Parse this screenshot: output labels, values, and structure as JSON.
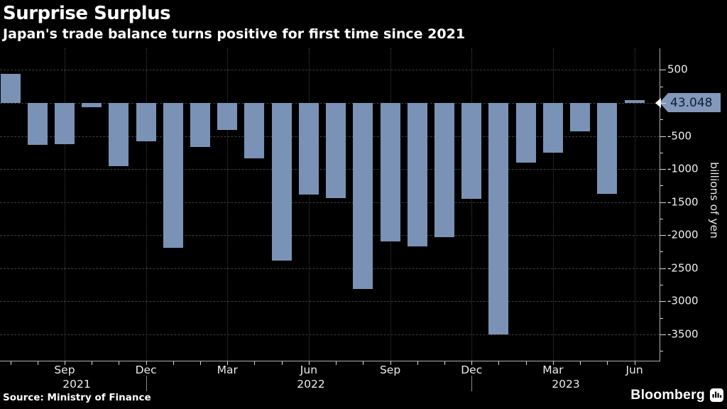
{
  "header": {
    "title": "Surprise Surplus",
    "subtitle": "Japan's trade balance turns positive for first time since 2021"
  },
  "chart_data": {
    "type": "bar",
    "title": "Surprise Surplus",
    "subtitle": "Japan's trade balance turns positive for first time since 2021",
    "ylabel": "billions of yen",
    "grid": true,
    "legend_position": "none",
    "ylim": [
      -3900,
      830
    ],
    "x": [
      "Jul 2021",
      "Aug 2021",
      "Sep 2021",
      "Oct 2021",
      "Nov 2021",
      "Dec 2021",
      "Jan 2022",
      "Feb 2022",
      "Mar 2022",
      "Apr 2022",
      "May 2022",
      "Jun 2022",
      "Jul 2022",
      "Aug 2022",
      "Sep 2022",
      "Oct 2022",
      "Nov 2022",
      "Dec 2022",
      "Jan 2023",
      "Feb 2023",
      "Mar 2023",
      "Apr 2023",
      "May 2023",
      "Jun 2023"
    ],
    "values": [
      441.9,
      -635.4,
      -622.8,
      -67.4,
      -954.8,
      -582.4,
      -2191.1,
      -668.3,
      -412.4,
      -839.2,
      -2384.7,
      -1383.8,
      -1436.8,
      -2817.3,
      -2094.0,
      -2166.2,
      -2027.4,
      -1448.5,
      -3496.6,
      -897.7,
      -754.5,
      -432.4,
      -1372.5,
      43.048
    ],
    "last_point_badge": "43.048",
    "grid_values": [
      500,
      0,
      -500,
      -1000,
      -1500,
      -2000,
      -2500,
      -3000,
      -3500
    ],
    "y_major_ticks": [
      {
        "value": 500,
        "label": "500"
      },
      {
        "value": 0,
        "label": ""
      },
      {
        "value": -500,
        "label": "-500"
      },
      {
        "value": -1000,
        "label": "-1000"
      },
      {
        "value": -1500,
        "label": "-1500"
      },
      {
        "value": -2000,
        "label": "-2000"
      },
      {
        "value": -2500,
        "label": "-2500"
      },
      {
        "value": -3000,
        "label": "-3000"
      },
      {
        "value": -3500,
        "label": "-3500"
      }
    ],
    "y_minor_tick_values": [
      250,
      -250,
      -750,
      -1250,
      -1750,
      -2250,
      -2750,
      -3250,
      -3750
    ],
    "x_quarter_labels": [
      {
        "label": "Sep",
        "index": 2
      },
      {
        "label": "Dec",
        "index": 5
      },
      {
        "label": "Mar",
        "index": 8
      },
      {
        "label": "Jun",
        "index": 11
      },
      {
        "label": "Sep",
        "index": 14
      },
      {
        "label": "Dec",
        "index": 17
      },
      {
        "label": "Mar",
        "index": 20
      },
      {
        "label": "Jun",
        "index": 23
      }
    ],
    "year_labels": [
      {
        "label": "2021",
        "center_x": 108
      },
      {
        "label": "2022",
        "center_x": 438
      },
      {
        "label": "2023",
        "center_x": 797
      }
    ],
    "year_divider_indices": [
      5,
      17
    ],
    "colors": {
      "bar": "#7a92b5",
      "badge_bg": "#8399bb",
      "badge_text": "#0d1d33",
      "background": "#000000",
      "gridline": "#3e3e3e",
      "axis": "#b0b0b0",
      "label": "#ececec"
    }
  },
  "footer": {
    "source": "Source: Ministry of Finance",
    "brand": "Bloomberg"
  }
}
